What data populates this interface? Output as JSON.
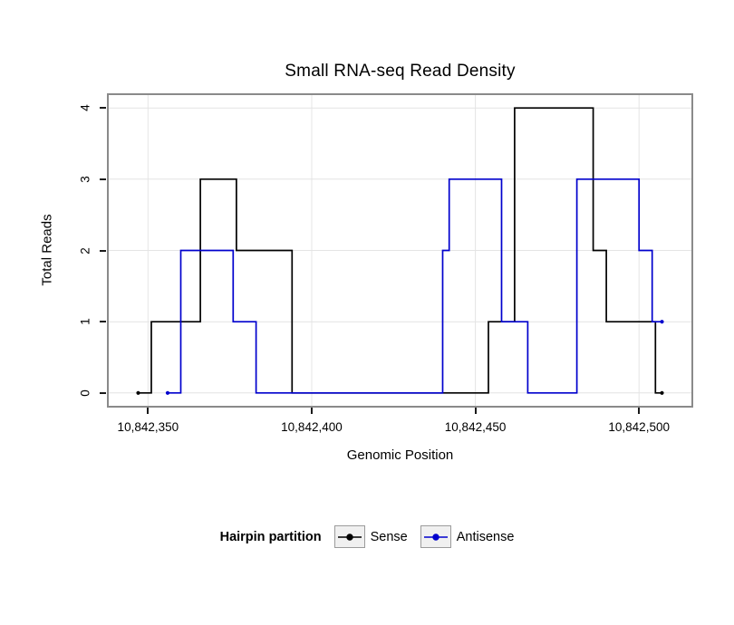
{
  "chart_data": {
    "type": "line",
    "step": true,
    "title": "Small RNA-seq Read Density",
    "xlabel": "Genomic Position",
    "ylabel": "Total Reads",
    "xlim": [
      10842338,
      10842516
    ],
    "ylim": [
      -0.18,
      4.18
    ],
    "grid": true,
    "grid_color": "#E4E4E4",
    "panel_border_color": "#8A8A8A",
    "background_color": "#FFFFFF",
    "x_ticks": [
      {
        "value": 10842350,
        "label": "10,842,350"
      },
      {
        "value": 10842400,
        "label": "10,842,400"
      },
      {
        "value": 10842450,
        "label": "10,842,450"
      },
      {
        "value": 10842500,
        "label": "10,842,500"
      }
    ],
    "y_ticks": [
      {
        "value": 0,
        "label": "0"
      },
      {
        "value": 1,
        "label": "1"
      },
      {
        "value": 2,
        "label": "2"
      },
      {
        "value": 3,
        "label": "3"
      },
      {
        "value": 4,
        "label": "4"
      }
    ],
    "legend": {
      "title": "Hairpin partition",
      "position": "bottom"
    },
    "series": [
      {
        "name": "Sense",
        "color": "#000000",
        "points": [
          [
            10842347,
            0
          ],
          [
            10842351,
            0
          ],
          [
            10842351,
            1
          ],
          [
            10842366,
            1
          ],
          [
            10842366,
            3
          ],
          [
            10842377,
            3
          ],
          [
            10842377,
            2
          ],
          [
            10842394,
            2
          ],
          [
            10842394,
            0
          ],
          [
            10842454,
            0
          ],
          [
            10842454,
            1
          ],
          [
            10842462,
            1
          ],
          [
            10842462,
            4
          ],
          [
            10842486,
            4
          ],
          [
            10842486,
            2
          ],
          [
            10842490,
            2
          ],
          [
            10842490,
            1
          ],
          [
            10842505,
            1
          ],
          [
            10842505,
            0
          ],
          [
            10842507,
            0
          ]
        ]
      },
      {
        "name": "Antisense",
        "color": "#0000CD",
        "points": [
          [
            10842356,
            0
          ],
          [
            10842360,
            0
          ],
          [
            10842360,
            2
          ],
          [
            10842376,
            2
          ],
          [
            10842376,
            1
          ],
          [
            10842383,
            1
          ],
          [
            10842383,
            0
          ],
          [
            10842440,
            0
          ],
          [
            10842440,
            2
          ],
          [
            10842442,
            2
          ],
          [
            10842442,
            3
          ],
          [
            10842458,
            3
          ],
          [
            10842458,
            1
          ],
          [
            10842466,
            1
          ],
          [
            10842466,
            0
          ],
          [
            10842481,
            0
          ],
          [
            10842481,
            3
          ],
          [
            10842500,
            3
          ],
          [
            10842500,
            2
          ],
          [
            10842504,
            2
          ],
          [
            10842504,
            1
          ],
          [
            10842507,
            1
          ]
        ]
      }
    ]
  }
}
